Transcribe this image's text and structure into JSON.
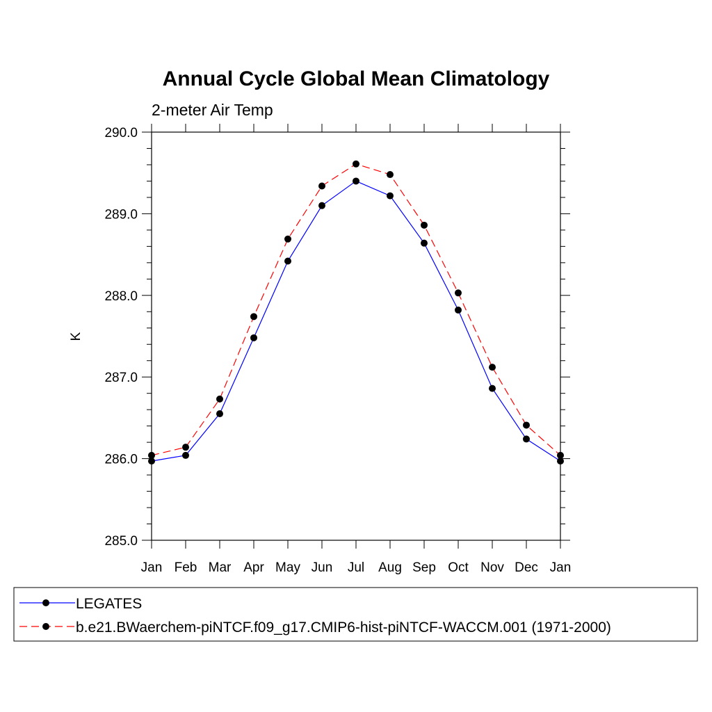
{
  "chart_data": {
    "type": "line",
    "title": "Annual Cycle Global Mean Climatology",
    "subtitle": "2-meter Air Temp",
    "xlabel": "",
    "ylabel": "K",
    "ylim": [
      285.0,
      290.0
    ],
    "y_ticks": [
      "285.0",
      "286.0",
      "287.0",
      "288.0",
      "289.0",
      "290.0"
    ],
    "categories": [
      "Jan",
      "Feb",
      "Mar",
      "Apr",
      "May",
      "Jun",
      "Jul",
      "Aug",
      "Sep",
      "Oct",
      "Nov",
      "Dec",
      "Jan"
    ],
    "series": [
      {
        "name": "LEGATES",
        "color": "#0000ff",
        "line_style": "solid",
        "marker": "filled-circle",
        "values": [
          285.97,
          286.04,
          286.55,
          287.48,
          288.42,
          289.1,
          289.4,
          289.22,
          288.64,
          287.82,
          286.86,
          286.24,
          285.97
        ]
      },
      {
        "name": "b.e21.BWaerchem-piNTCF.f09_g17.CMIP6-hist-piNTCF-WACCM.001 (1971-2000)",
        "color": "#ff0000",
        "line_style": "dashed",
        "marker": "filled-circle",
        "values": [
          286.04,
          286.14,
          286.73,
          287.74,
          288.69,
          289.34,
          289.61,
          289.48,
          288.86,
          288.03,
          287.12,
          286.41,
          286.04
        ]
      }
    ],
    "grid": false,
    "legend_position": "bottom"
  }
}
